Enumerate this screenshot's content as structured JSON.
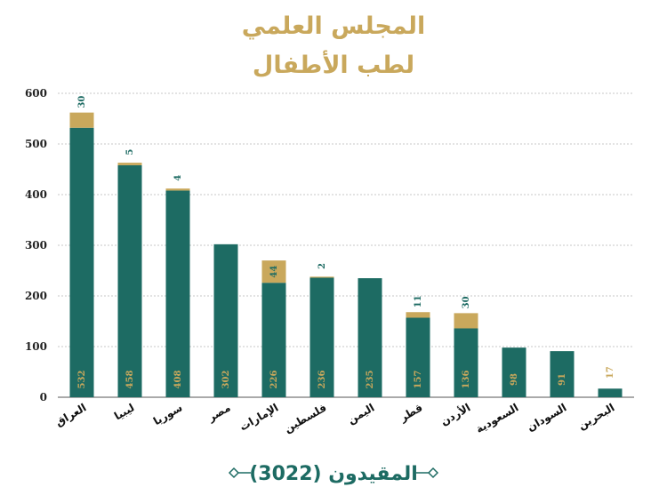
{
  "header": {
    "title_line1": "المجلس العلمي",
    "title_line2": "لطب الأطفال"
  },
  "footer": {
    "caption": "المقيدون (3022)"
  },
  "colors": {
    "primary": "#1d6b63",
    "secondary": "#c9a85c",
    "grid": "#b5b5b5"
  },
  "chart_data": {
    "type": "bar",
    "stacked": true,
    "categories": [
      "العراق",
      "ليبيا",
      "سوريا",
      "مصر",
      "الإمارات",
      "فلسطين",
      "اليمن",
      "قطر",
      "الأردن",
      "السعودية",
      "السودان",
      "البحرين"
    ],
    "series": [
      {
        "values": [
          532,
          458,
          408,
          302,
          226,
          236,
          235,
          157,
          136,
          98,
          91,
          17
        ],
        "color": "#1d6b63"
      },
      {
        "values": [
          30,
          5,
          4,
          0,
          44,
          2,
          0,
          11,
          30,
          0,
          0,
          0
        ],
        "color": "#c9a85c"
      }
    ],
    "ylim": [
      0,
      600
    ],
    "yticks": [
      0,
      100,
      200,
      300,
      400,
      500,
      600
    ],
    "grid": true,
    "legend": "none"
  }
}
